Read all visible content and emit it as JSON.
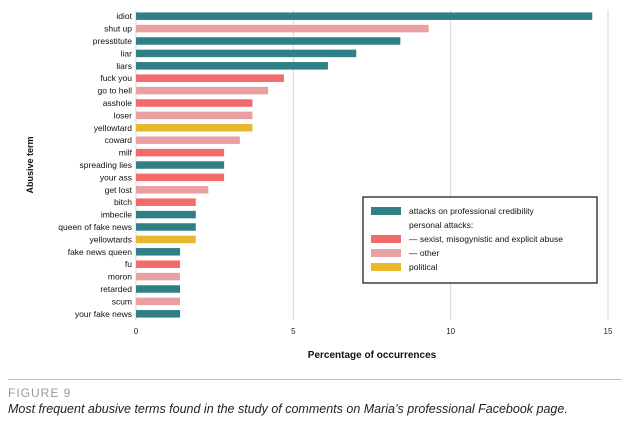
{
  "figure": {
    "label": "FIGURE 9",
    "caption": "Most frequent abusive terms found in the study of comments on Maria’s professional Facebook page."
  },
  "chart_data": {
    "type": "bar",
    "orientation": "horizontal",
    "xlabel": "Percentage of occurrences",
    "ylabel": "Abusive term",
    "xlim": [
      0,
      15
    ],
    "xticks": [
      0,
      5,
      10,
      15
    ],
    "grid": true,
    "legend_position": "right",
    "legend": [
      {
        "key": "professional",
        "text": "attacks on professional credibility",
        "color": "#2f7f86"
      },
      {
        "key": "heading",
        "text": "personal attacks:",
        "color": ""
      },
      {
        "key": "sexist",
        "text": "— sexist, misogynistic and explicit abuse",
        "color": "#f26a6a"
      },
      {
        "key": "other",
        "text": "— other",
        "color": "#e8a0a0"
      },
      {
        "key": "political",
        "text": "political",
        "color": "#e8b82c"
      }
    ],
    "bars": [
      {
        "term": "idiot",
        "value": 14.5,
        "category": "professional"
      },
      {
        "term": "shut up",
        "value": 9.3,
        "category": "other"
      },
      {
        "term": "presstitute",
        "value": 8.4,
        "category": "professional"
      },
      {
        "term": "liar",
        "value": 7.0,
        "category": "professional"
      },
      {
        "term": "liars",
        "value": 6.1,
        "category": "professional"
      },
      {
        "term": "fuck you",
        "value": 4.7,
        "category": "sexist"
      },
      {
        "term": "go to hell",
        "value": 4.2,
        "category": "other"
      },
      {
        "term": "asshole",
        "value": 3.7,
        "category": "sexist"
      },
      {
        "term": "loser",
        "value": 3.7,
        "category": "other"
      },
      {
        "term": "yellowtard",
        "value": 3.7,
        "category": "political"
      },
      {
        "term": "coward",
        "value": 3.3,
        "category": "other"
      },
      {
        "term": "milf",
        "value": 2.8,
        "category": "sexist"
      },
      {
        "term": "spreading lies",
        "value": 2.8,
        "category": "professional"
      },
      {
        "term": "your ass",
        "value": 2.8,
        "category": "sexist"
      },
      {
        "term": "get lost",
        "value": 2.3,
        "category": "other"
      },
      {
        "term": "bitch",
        "value": 1.9,
        "category": "sexist"
      },
      {
        "term": "imbecile",
        "value": 1.9,
        "category": "professional"
      },
      {
        "term": "queen of fake news",
        "value": 1.9,
        "category": "professional"
      },
      {
        "term": "yellowtards",
        "value": 1.9,
        "category": "political"
      },
      {
        "term": "fake news queen",
        "value": 1.4,
        "category": "professional"
      },
      {
        "term": "fu",
        "value": 1.4,
        "category": "sexist"
      },
      {
        "term": "moron",
        "value": 1.4,
        "category": "other"
      },
      {
        "term": "retarded",
        "value": 1.4,
        "category": "professional"
      },
      {
        "term": "scum",
        "value": 1.4,
        "category": "other"
      },
      {
        "term": "your fake news",
        "value": 1.4,
        "category": "professional"
      }
    ]
  }
}
